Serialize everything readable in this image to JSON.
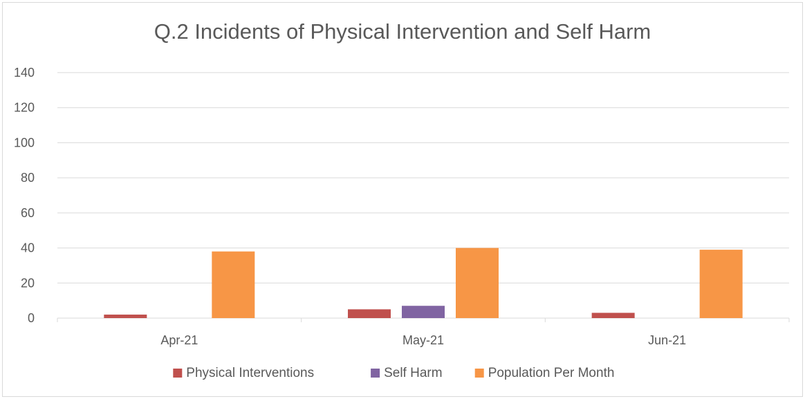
{
  "chart_data": {
    "type": "bar",
    "title": "Q.2 Incidents of Physical Intervention and Self Harm",
    "categories": [
      "Apr-21",
      "May-21",
      "Jun-21"
    ],
    "series": [
      {
        "name": "Physical Interventions",
        "values": [
          2,
          5,
          3
        ],
        "color": "#c0504d"
      },
      {
        "name": "Self Harm",
        "values": [
          0,
          7,
          0
        ],
        "color": "#8064a2"
      },
      {
        "name": "Population Per Month",
        "values": [
          38,
          40,
          39
        ],
        "color": "#f79646"
      }
    ],
    "ylim": [
      0,
      140
    ],
    "yticks": [
      0,
      20,
      40,
      60,
      80,
      100,
      120,
      140
    ],
    "grid": true,
    "legend": "bottom"
  }
}
